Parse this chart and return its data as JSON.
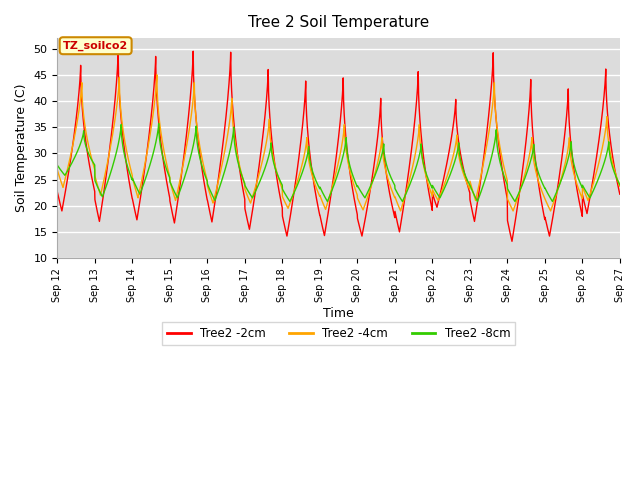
{
  "title": "Tree 2 Soil Temperature",
  "xlabel": "Time",
  "ylabel": "Soil Temperature (C)",
  "ylim": [
    10,
    52
  ],
  "background_color": "#dcdcdc",
  "xtick_labels": [
    "Sep 12",
    "Sep 13",
    "Sep 14",
    "Sep 15",
    "Sep 16",
    "Sep 17",
    "Sep 18",
    "Sep 19",
    "Sep 20",
    "Sep 21",
    "Sep 22",
    "Sep 23",
    "Sep 24",
    "Sep 25",
    "Sep 26",
    "Sep 27"
  ],
  "ytick_values": [
    10,
    15,
    20,
    25,
    30,
    35,
    40,
    45,
    50
  ],
  "annotation_text": "TZ_soilco2",
  "line_colors": {
    "2cm": "#ff0000",
    "4cm": "#ffa500",
    "8cm": "#33cc00"
  },
  "legend_labels": [
    "Tree2 -2cm",
    "Tree2 -4cm",
    "Tree2 -8cm"
  ],
  "legend_colors": [
    "#ff0000",
    "#ffa500",
    "#33cc00"
  ],
  "peak_maxes_2cm": [
    46.8,
    49.5,
    48.5,
    49.5,
    49.3,
    46.0,
    43.8,
    44.4,
    40.5,
    45.6,
    40.3,
    49.2,
    44.1,
    42.3,
    46.1,
    46.2
  ],
  "peak_mins_2cm": [
    19.0,
    17.0,
    17.3,
    16.7,
    16.9,
    15.5,
    14.2,
    14.3,
    14.2,
    15.0,
    19.7,
    17.0,
    13.2,
    14.2,
    18.5
  ],
  "peak_maxes_4cm": [
    43.5,
    44.5,
    45.0,
    43.5,
    40.5,
    36.5,
    33.0,
    35.5,
    33.0,
    35.5,
    33.5,
    43.5,
    33.0,
    33.0,
    37.0,
    37.0
  ],
  "peak_mins_4cm": [
    23.5,
    22.0,
    21.5,
    21.0,
    20.5,
    20.5,
    19.5,
    19.3,
    19.2,
    19.0,
    21.0,
    21.0,
    19.0,
    19.0,
    21.0
  ],
  "peak_maxes_8cm": [
    34.3,
    35.5,
    35.7,
    35.2,
    35.0,
    32.0,
    31.3,
    33.0,
    31.8,
    31.8,
    32.0,
    34.5,
    31.7,
    32.2,
    32.2,
    31.8
  ],
  "peak_mins_8cm": [
    25.8,
    21.7,
    22.2,
    21.5,
    21.0,
    21.5,
    20.8,
    20.8,
    21.5,
    20.8,
    21.5,
    20.8,
    20.8,
    20.8,
    21.5
  ]
}
